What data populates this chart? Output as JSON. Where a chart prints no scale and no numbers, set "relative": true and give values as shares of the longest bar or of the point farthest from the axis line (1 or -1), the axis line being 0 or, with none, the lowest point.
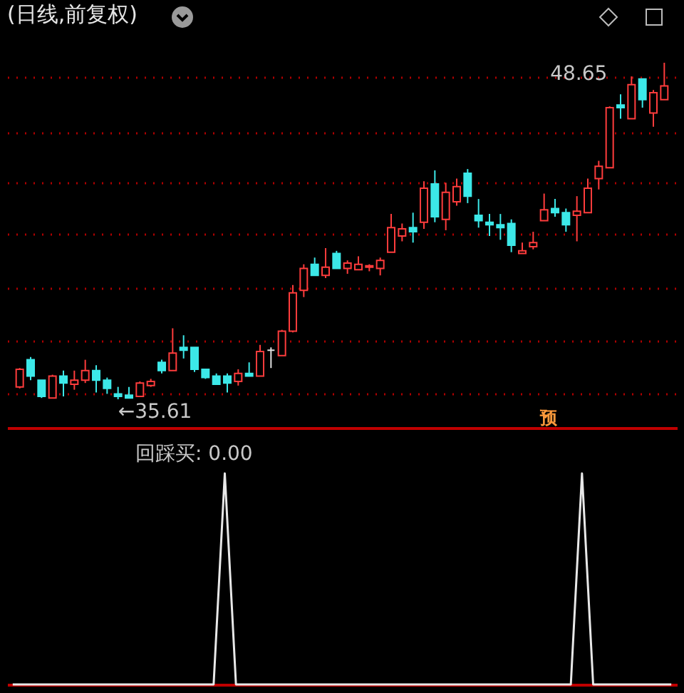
{
  "chart_data": [
    {
      "type": "candlestick",
      "title": "(日线,前复权)",
      "categories": [
        null,
        null,
        null,
        null,
        null,
        null,
        null,
        null,
        null,
        null,
        null,
        null,
        null,
        null,
        null,
        null,
        null,
        null,
        null,
        null,
        null,
        null,
        null,
        null,
        null,
        null,
        null,
        null,
        null,
        null,
        null,
        null,
        null,
        null,
        null,
        null,
        null,
        null,
        null,
        null,
        null,
        null,
        null,
        null,
        null,
        null,
        null,
        null,
        null,
        null,
        null,
        null,
        null,
        null,
        null,
        null,
        null,
        null,
        null,
        null
      ],
      "ohlc": [
        [
          36.09,
          36.82,
          36.03,
          36.77
        ],
        [
          37.14,
          37.25,
          36.35,
          36.51
        ],
        [
          36.35,
          36.35,
          35.66,
          35.72
        ],
        [
          35.66,
          36.56,
          35.66,
          36.51
        ],
        [
          36.51,
          36.72,
          35.72,
          36.24
        ],
        [
          36.19,
          36.72,
          35.98,
          36.35
        ],
        [
          36.35,
          37.14,
          36.24,
          36.72
        ],
        [
          36.72,
          36.93,
          35.87,
          36.35
        ],
        [
          36.35,
          36.45,
          35.82,
          36.03
        ],
        [
          35.82,
          36.09,
          35.61,
          35.72
        ],
        [
          35.77,
          36.09,
          35.66,
          35.66
        ],
        [
          35.72,
          36.3,
          35.72,
          36.24
        ],
        [
          36.14,
          36.4,
          36.09,
          36.3
        ],
        [
          37.04,
          37.14,
          36.61,
          36.72
        ],
        [
          36.72,
          38.36,
          36.72,
          37.4
        ],
        [
          37.62,
          38.09,
          37.19,
          37.51
        ],
        [
          37.62,
          37.62,
          36.67,
          36.77
        ],
        [
          36.77,
          36.77,
          36.4,
          36.45
        ],
        [
          36.51,
          36.61,
          36.19,
          36.19
        ],
        [
          36.51,
          36.61,
          35.87,
          36.24
        ],
        [
          36.3,
          36.77,
          36.14,
          36.61
        ],
        [
          36.61,
          37.04,
          36.51,
          36.51
        ],
        [
          36.51,
          37.72,
          36.51,
          37.46
        ],
        [
          37.51,
          37.62,
          36.82,
          37.51
        ],
        [
          37.3,
          38.3,
          37.3,
          38.25
        ],
        [
          38.25,
          40.04,
          38.2,
          39.73
        ],
        [
          39.83,
          40.84,
          39.57,
          40.68
        ],
        [
          40.84,
          41.1,
          40.41,
          40.41
        ],
        [
          40.41,
          41.47,
          40.31,
          40.73
        ],
        [
          41.26,
          41.36,
          40.68,
          40.68
        ],
        [
          40.68,
          40.99,
          40.47,
          40.89
        ],
        [
          40.63,
          41.15,
          40.63,
          40.84
        ],
        [
          40.73,
          40.84,
          40.57,
          40.78
        ],
        [
          40.68,
          41.1,
          40.41,
          40.99
        ],
        [
          41.31,
          42.79,
          41.31,
          42.26
        ],
        [
          41.94,
          42.42,
          41.73,
          42.21
        ],
        [
          42.26,
          42.84,
          41.68,
          42.1
        ],
        [
          42.47,
          44.06,
          42.21,
          43.79
        ],
        [
          43.95,
          44.48,
          42.47,
          42.68
        ],
        [
          42.58,
          44.0,
          42.16,
          43.63
        ],
        [
          43.26,
          44.16,
          43.11,
          43.85
        ],
        [
          44.37,
          44.53,
          43.21,
          43.48
        ],
        [
          42.74,
          43.37,
          42.26,
          42.53
        ],
        [
          42.47,
          42.79,
          41.94,
          42.37
        ],
        [
          42.37,
          42.79,
          41.79,
          42.26
        ],
        [
          42.42,
          42.58,
          41.31,
          41.58
        ],
        [
          41.26,
          41.68,
          41.26,
          41.36
        ],
        [
          41.52,
          42.1,
          41.42,
          41.68
        ],
        [
          42.53,
          43.58,
          42.53,
          42.95
        ],
        [
          43.0,
          43.37,
          42.68,
          42.84
        ],
        [
          42.84,
          43.0,
          42.1,
          42.37
        ],
        [
          42.74,
          43.48,
          41.73,
          42.9
        ],
        [
          42.84,
          44.16,
          42.84,
          43.79
        ],
        [
          44.16,
          44.85,
          43.74,
          44.64
        ],
        [
          44.58,
          46.96,
          44.58,
          46.91
        ],
        [
          47.01,
          47.43,
          46.48,
          46.91
        ],
        [
          46.48,
          48.12,
          46.48,
          47.8
        ],
        [
          48.02,
          48.02,
          46.91,
          47.22
        ],
        [
          46.7,
          47.59,
          46.17,
          47.49
        ],
        [
          47.22,
          48.65,
          47.22,
          47.75
        ]
      ],
      "colors": [
        "#ff3c3c",
        "#3ce8e8",
        "#3ce8e8",
        "#ff3c3c",
        "#3ce8e8",
        "#ff3c3c",
        "#ff3c3c",
        "#3ce8e8",
        "#3ce8e8",
        "#3ce8e8",
        "#3ce8e8",
        "#ff3c3c",
        "#ff3c3c",
        "#3ce8e8",
        "#ff3c3c",
        "#3ce8e8",
        "#3ce8e8",
        "#3ce8e8",
        "#3ce8e8",
        "#3ce8e8",
        "#ff3c3c",
        "#3ce8e8",
        "#ff3c3c",
        "#e0e0e0",
        "#ff3c3c",
        "#ff3c3c",
        "#ff3c3c",
        "#3ce8e8",
        "#ff3c3c",
        "#3ce8e8",
        "#ff3c3c",
        "#ff3c3c",
        "#ff3c3c",
        "#ff3c3c",
        "#ff3c3c",
        "#ff3c3c",
        "#3ce8e8",
        "#ff3c3c",
        "#3ce8e8",
        "#ff3c3c",
        "#ff3c3c",
        "#3ce8e8",
        "#3ce8e8",
        "#3ce8e8",
        "#3ce8e8",
        "#3ce8e8",
        "#ff3c3c",
        "#ff3c3c",
        "#ff3c3c",
        "#3ce8e8",
        "#3ce8e8",
        "#ff3c3c",
        "#ff3c3c",
        "#ff3c3c",
        "#ff3c3c",
        "#3ce8e8",
        "#ff3c3c",
        "#3ce8e8",
        "#ff3c3c",
        "#ff3c3c"
      ],
      "yticks": [
        {
          "value": 35.82,
          "label": null
        },
        {
          "value": 37.88,
          "label": null
        },
        {
          "value": 39.94,
          "label": null
        },
        {
          "value": 42.0,
          "label": null
        },
        {
          "value": 44.0,
          "label": null
        },
        {
          "value": 45.97,
          "label": null
        },
        {
          "value": 48.07,
          "label": null
        }
      ],
      "grid": "y",
      "tick_labels": false,
      "annotations": [
        "48.65",
        "←35.61",
        "预"
      ]
    },
    {
      "type": "line",
      "title": "回踩买: 0.00",
      "categories": [
        null,
        null,
        null,
        null,
        null,
        null,
        null,
        null,
        null,
        null,
        null,
        null,
        null,
        null,
        null,
        null,
        null,
        null,
        null,
        null,
        null,
        null,
        null,
        null,
        null,
        null,
        null,
        null,
        null,
        null,
        null,
        null,
        null,
        null,
        null,
        null,
        null,
        null,
        null,
        null,
        null,
        null,
        null,
        null,
        null,
        null,
        null,
        null,
        null,
        null,
        null,
        null,
        null,
        null,
        null,
        null,
        null,
        null,
        null,
        null
      ],
      "values": [
        0,
        0,
        0,
        0,
        0,
        0,
        0,
        0,
        0,
        0,
        0,
        0,
        0,
        0,
        0,
        0,
        0,
        0,
        0,
        1,
        0,
        0,
        0,
        0,
        0,
        0,
        0,
        0,
        0,
        0,
        0,
        0,
        0,
        0,
        0,
        0,
        0,
        0,
        0,
        0,
        0,
        0,
        0,
        0,
        0,
        0,
        0,
        0,
        0,
        0,
        0,
        1,
        0,
        0,
        0,
        0,
        0,
        0,
        0,
        0
      ],
      "color": "#e8e8e8",
      "relative": true,
      "tick_labels": false
    }
  ]
}
